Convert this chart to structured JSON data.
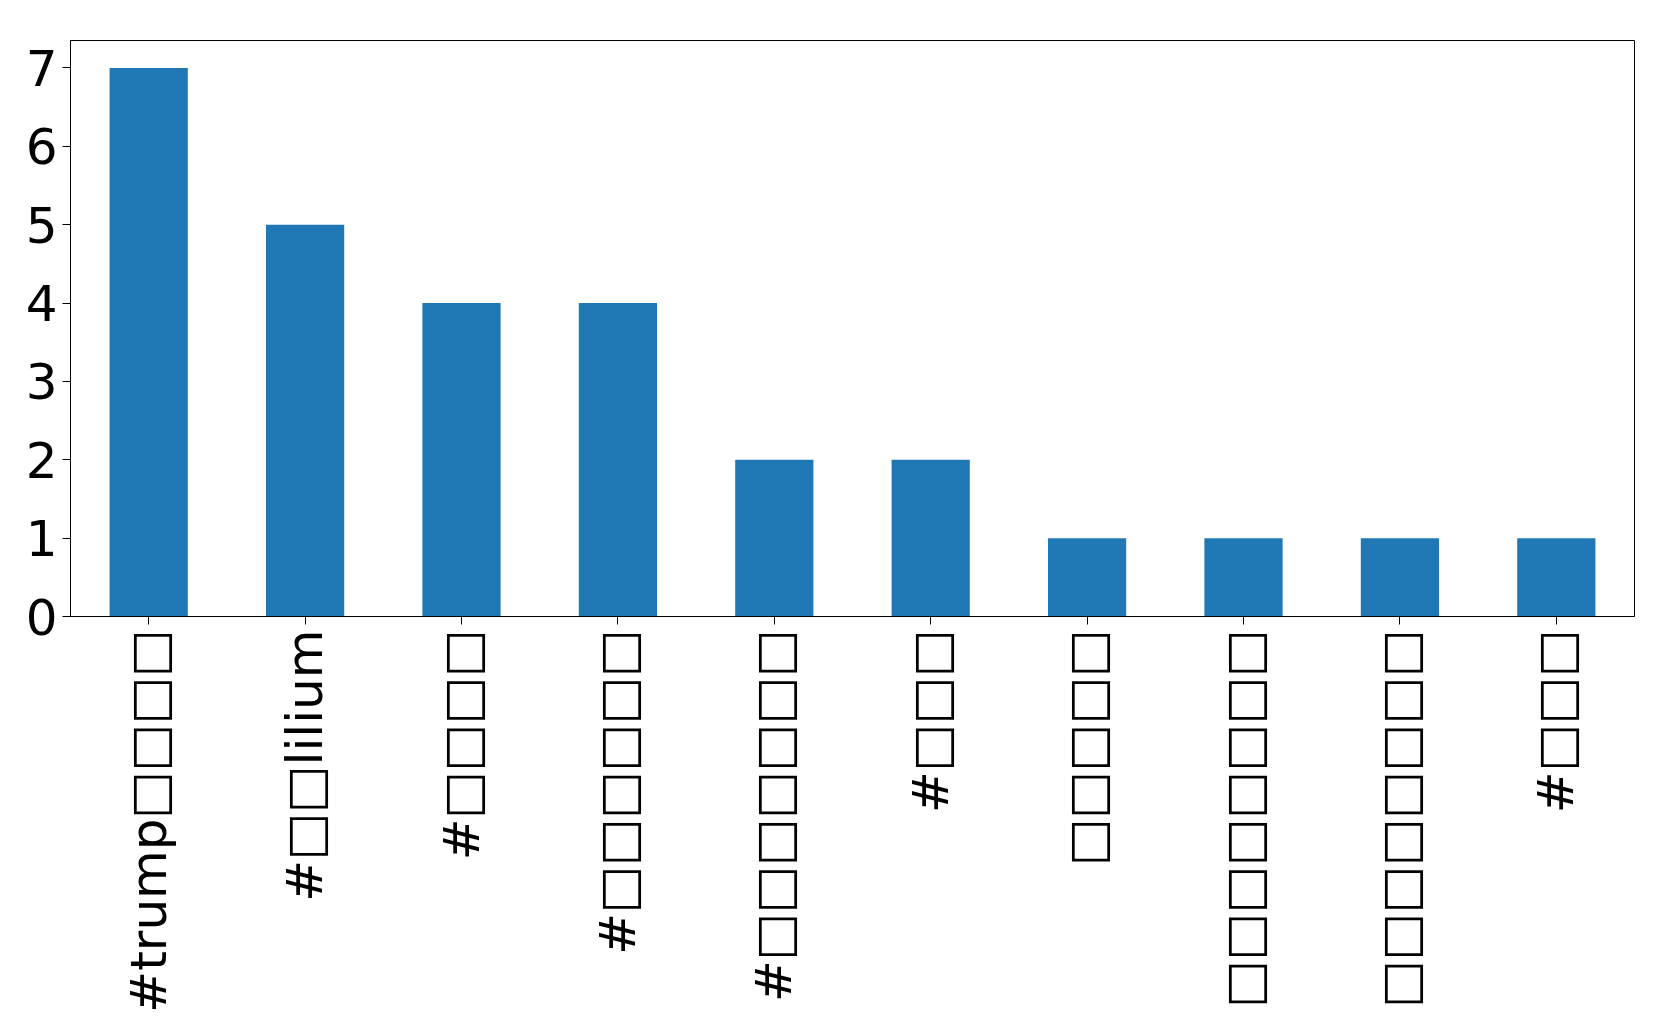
{
  "chart_data": {
    "type": "bar",
    "categories": [
      "#trump□□□□",
      "#□□lilium",
      "#□□□□",
      "#□□□□□□",
      "#□□□□□□□",
      "#□□□",
      "□□□□□",
      "□□□□□□□□",
      "□□□□□□□□",
      "#□□□"
    ],
    "values": [
      7,
      5,
      4,
      4,
      2,
      2,
      1,
      1,
      1,
      1
    ],
    "color": "#1f77b4",
    "ylim": [
      0,
      7.35
    ],
    "yticks": [
      0,
      1,
      2,
      3,
      4,
      5,
      6,
      7
    ],
    "grid": false
  }
}
